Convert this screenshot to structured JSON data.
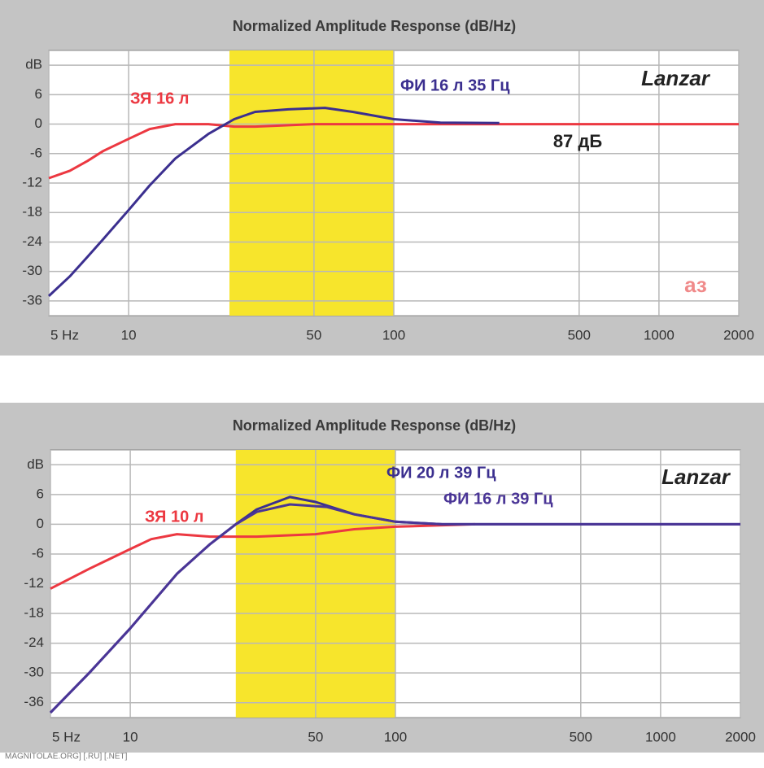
{
  "chart_data": [
    {
      "type": "line",
      "title": "Normalized Amplitude Response (dB/Hz)",
      "xscale": "log",
      "xlim": [
        5,
        2000
      ],
      "xticks": [
        {
          "value": 5,
          "label": "5 Hz"
        },
        10,
        50,
        100,
        500,
        1000,
        2000
      ],
      "ylim": [
        -39,
        15
      ],
      "yticks": [
        {
          "value": 12,
          "label": "dB"
        },
        6,
        0,
        -6,
        -12,
        -18,
        -24,
        -30,
        -36
      ],
      "grid": true,
      "highlight": {
        "range": [
          24,
          100
        ],
        "color": "#f7e52c"
      },
      "series": [
        {
          "name": "ЗЯ 16 л",
          "color": "#ec3841",
          "x": [
            5,
            6,
            7,
            8,
            10,
            12,
            15,
            20,
            25,
            30,
            50,
            100,
            200,
            2000
          ],
          "values": [
            -11,
            -9.5,
            -7.5,
            -5.5,
            -3,
            -1,
            0,
            0,
            -0.5,
            -0.5,
            0,
            0,
            0,
            0
          ]
        },
        {
          "name": "ФИ 16 л 35 Гц",
          "color": "#3b2f8f",
          "x": [
            5,
            6,
            7,
            8,
            10,
            12,
            15,
            20,
            25,
            30,
            40,
            55,
            70,
            100,
            150,
            250
          ],
          "values": [
            -35,
            -31,
            -27,
            -23.5,
            -17.5,
            -12.5,
            -7,
            -2,
            1,
            2.5,
            3,
            3.3,
            2.5,
            1,
            0.3,
            0.2
          ]
        }
      ],
      "annotations": [
        "87 дБ",
        "Lanzar",
        "аз"
      ]
    },
    {
      "type": "line",
      "title": "Normalized Amplitude Response (dB/Hz)",
      "xscale": "log",
      "xlim": [
        5,
        2000
      ],
      "xticks": [
        {
          "value": 5,
          "label": "5 Hz"
        },
        10,
        50,
        100,
        500,
        1000,
        2000
      ],
      "ylim": [
        -39,
        15
      ],
      "yticks": [
        {
          "value": 12,
          "label": "dB"
        },
        6,
        0,
        -6,
        -12,
        -18,
        -24,
        -30,
        -36
      ],
      "grid": true,
      "highlight": {
        "range": [
          25,
          100
        ],
        "color": "#f7e52c"
      },
      "series": [
        {
          "name": "ЗЯ 10 л",
          "color": "#ec3841",
          "x": [
            5,
            7,
            10,
            12,
            15,
            20,
            30,
            50,
            70,
            100,
            200
          ],
          "values": [
            -13,
            -9,
            -5,
            -3,
            -2,
            -2.5,
            -2.5,
            -2,
            -1,
            -0.5,
            0
          ]
        },
        {
          "name": "ФИ 20 л 39 Гц",
          "color": "#3b2f8f",
          "x": [
            5,
            7,
            10,
            15,
            20,
            25,
            30,
            40,
            50,
            70,
            100,
            150,
            2000
          ],
          "values": [
            -38,
            -30,
            -21,
            -10,
            -4,
            0,
            3,
            5.5,
            4.5,
            2,
            0.5,
            0,
            0
          ]
        },
        {
          "name": "ФИ 16 л 39 Гц",
          "color": "#4a3596",
          "x": [
            5,
            7,
            10,
            15,
            20,
            25,
            30,
            40,
            55,
            70,
            100,
            150,
            2000
          ],
          "values": [
            -38,
            -30,
            -21,
            -10,
            -4,
            0,
            2.5,
            4,
            3.5,
            2,
            0.5,
            0,
            0
          ]
        }
      ],
      "annotations": [
        "Lanzar"
      ]
    }
  ],
  "footer": "MAGNITOLAE.ORG] [.RU] [.NET]"
}
